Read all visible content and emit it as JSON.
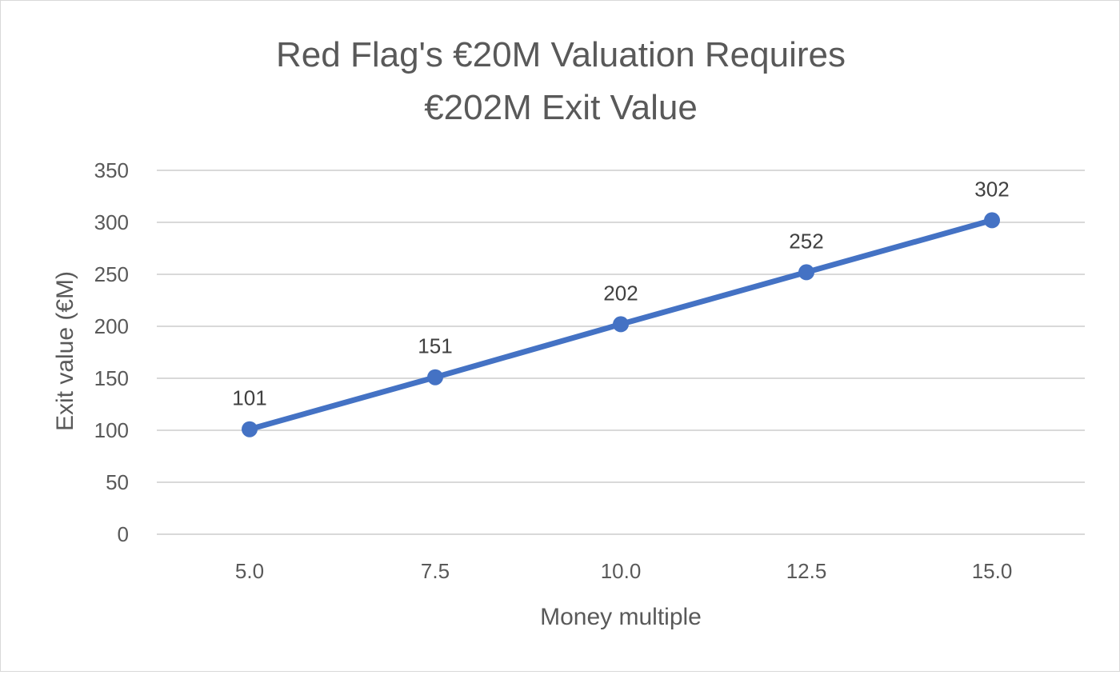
{
  "chart_data": {
    "type": "line",
    "title_lines": [
      "Red Flag's €20M Valuation Requires",
      "€202M Exit Value"
    ],
    "xlabel": "Money multiple",
    "ylabel": "Exit value (€M)",
    "x_ticks": [
      "5.0",
      "7.5",
      "10.0",
      "12.5",
      "15.0"
    ],
    "y_ticks": [
      "0",
      "50",
      "100",
      "150",
      "200",
      "250",
      "300",
      "350"
    ],
    "ylim": [
      0,
      350
    ],
    "grid": true,
    "legend": "none",
    "series_color": "#4472c4",
    "series": [
      {
        "x": [
          5.0,
          7.5,
          10.0,
          12.5,
          15.0
        ],
        "values": [
          101,
          151,
          202,
          252,
          302
        ],
        "labels": [
          "101",
          "151",
          "202",
          "252",
          "302"
        ]
      }
    ]
  }
}
